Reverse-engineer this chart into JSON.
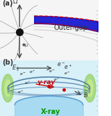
{
  "title_a": "(a)",
  "title_b": "(b)",
  "outer_gap_label": "Outer-gap",
  "xray_label": "X-ray",
  "gamma_ray_label": "γ-ray",
  "e_parallel_label": "E∥",
  "B_label": "B",
  "bg_color_top": "#f0f0f0",
  "bg_color_bottom": "#d8f0f8",
  "outer_gap_fill": "#0000cc",
  "outer_gap_edge_top": "#cc0000",
  "neutron_star_color": "#111111",
  "arrow_color": "#333333",
  "gamma_color": "#cc0000",
  "xray_color": "#00aa00",
  "fig_width": 1.6,
  "fig_height": 1.67,
  "dpi": 100
}
